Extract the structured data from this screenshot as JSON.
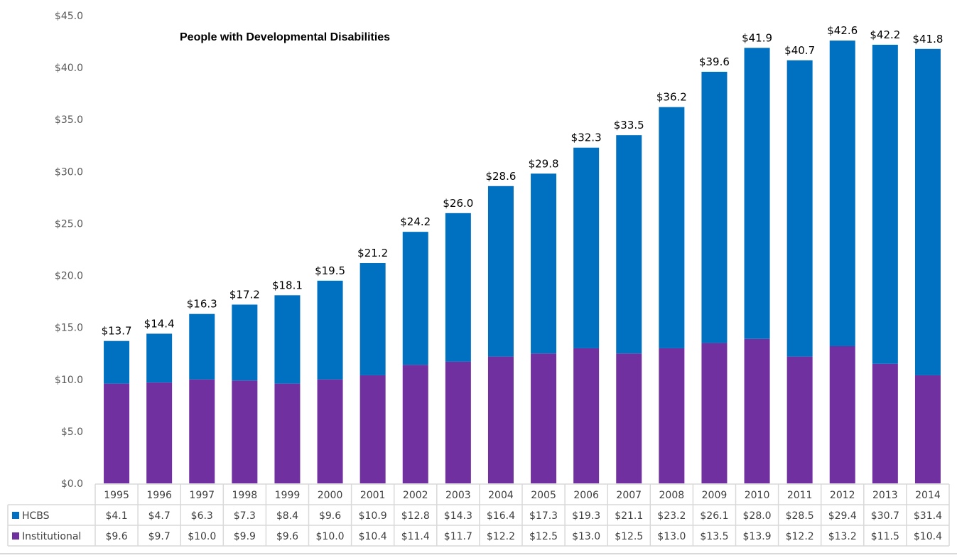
{
  "chart_data": {
    "type": "bar",
    "stacked": true,
    "title": "People with Developmental Disabilities",
    "xlabel": "",
    "ylabel": "",
    "ylim": [
      0,
      45
    ],
    "yticks": [
      0,
      5,
      10,
      15,
      20,
      25,
      30,
      35,
      40,
      45
    ],
    "ytick_labels": [
      "$0.0",
      "$5.0",
      "$10.0",
      "$15.0",
      "$20.0",
      "$25.0",
      "$30.0",
      "$35.0",
      "$40.0",
      "$45.0"
    ],
    "grid": false,
    "legend_placement": "data-table",
    "categories": [
      "1995",
      "1996",
      "1997",
      "1998",
      "1999",
      "2000",
      "2001",
      "2002",
      "2003",
      "2004",
      "2005",
      "2006",
      "2007",
      "2008",
      "2009",
      "2010",
      "2011",
      "2012",
      "2013",
      "2014"
    ],
    "series": [
      {
        "name": "Institutional",
        "color": "#7030A0",
        "values": [
          9.6,
          9.7,
          10.0,
          9.9,
          9.6,
          10.0,
          10.4,
          11.4,
          11.7,
          12.2,
          12.5,
          13.0,
          12.5,
          13.0,
          13.5,
          13.9,
          12.2,
          13.2,
          11.5,
          10.4
        ],
        "labels": [
          "$9.6",
          "$9.7",
          "$10.0",
          "$9.9",
          "$9.6",
          "$10.0",
          "$10.4",
          "$11.4",
          "$11.7",
          "$12.2",
          "$12.5",
          "$13.0",
          "$12.5",
          "$13.0",
          "$13.5",
          "$13.9",
          "$12.2",
          "$13.2",
          "$11.5",
          "$10.4"
        ]
      },
      {
        "name": "HCBS",
        "color": "#0070C0",
        "values": [
          4.1,
          4.7,
          6.3,
          7.3,
          8.4,
          9.6,
          10.9,
          12.8,
          14.3,
          16.4,
          17.3,
          19.3,
          21.1,
          23.2,
          26.1,
          28.0,
          28.5,
          29.4,
          30.7,
          31.4
        ],
        "labels": [
          "$4.1",
          "$4.7",
          "$6.3",
          "$7.3",
          "$8.4",
          "$9.6",
          "$10.9",
          "$12.8",
          "$14.3",
          "$16.4",
          "$17.3",
          "$19.3",
          "$21.1",
          "$23.2",
          "$26.1",
          "$28.0",
          "$28.5",
          "$29.4",
          "$30.7",
          "$31.4"
        ]
      }
    ],
    "totals": [
      13.7,
      14.4,
      16.3,
      17.2,
      18.1,
      19.5,
      21.2,
      24.2,
      26.0,
      28.6,
      29.8,
      32.3,
      33.5,
      36.2,
      39.6,
      41.9,
      40.7,
      42.6,
      42.2,
      41.8
    ],
    "total_labels": [
      "$13.7",
      "$14.4",
      "$16.3",
      "$17.2",
      "$18.1",
      "$19.5",
      "$21.2",
      "$24.2",
      "$26.0",
      "$28.6",
      "$29.8",
      "$32.3",
      "$33.5",
      "$36.2",
      "$39.6",
      "$41.9",
      "$40.7",
      "$42.6",
      "$42.2",
      "$41.8"
    ],
    "table_rows": [
      {
        "name": "HCBS",
        "color": "#0070C0"
      },
      {
        "name": "Institutional",
        "color": "#7030A0"
      }
    ]
  }
}
